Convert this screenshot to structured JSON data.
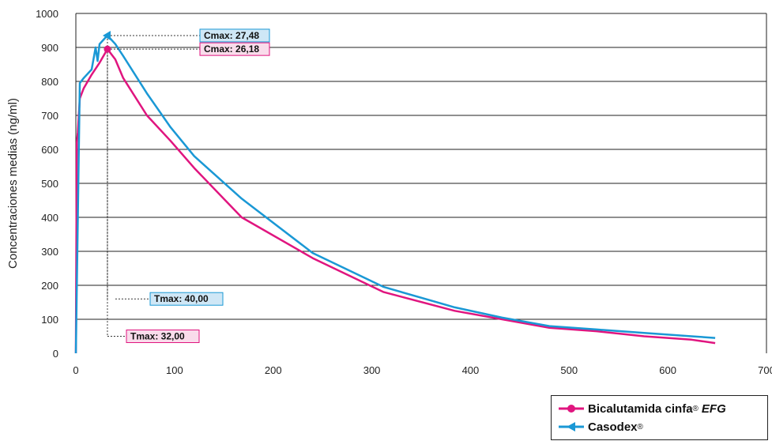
{
  "chart_data": {
    "type": "line",
    "ylabel": "Concentraciones medias (ng/ml)",
    "xlabel": "",
    "xlim": [
      0,
      700
    ],
    "ylim": [
      0,
      1000
    ],
    "x_ticks": [
      "0",
      "100",
      "200",
      "300",
      "400",
      "500",
      "600",
      "700"
    ],
    "y_ticks": [
      "0",
      "100",
      "200",
      "300",
      "400",
      "500",
      "600",
      "700",
      "800",
      "900",
      "1000"
    ],
    "grid": "horizontal",
    "series": [
      {
        "name": "Bicalutamida cinfa",
        "name_sup": "®",
        "name_suffix": "EFG",
        "color": "#e0157f",
        "marker": "circle",
        "x": [
          0,
          1,
          2,
          4,
          8,
          16,
          24,
          32,
          40,
          48,
          72,
          96,
          120,
          168,
          240,
          312,
          384,
          432,
          480,
          528,
          576,
          624,
          648
        ],
        "y": [
          0,
          620,
          650,
          750,
          780,
          820,
          855,
          895,
          865,
          810,
          700,
          625,
          545,
          400,
          280,
          180,
          125,
          100,
          75,
          65,
          50,
          40,
          30
        ]
      },
      {
        "name": "Casodex",
        "name_sup": "®",
        "name_suffix": "",
        "color": "#1a98d5",
        "marker": "triangle-left",
        "x": [
          0,
          4,
          8,
          16,
          20,
          22,
          24,
          32,
          40,
          48,
          72,
          96,
          120,
          168,
          240,
          312,
          384,
          432,
          480,
          528,
          576,
          624,
          648
        ],
        "y": [
          0,
          795,
          810,
          835,
          900,
          860,
          910,
          935,
          910,
          875,
          765,
          665,
          580,
          455,
          295,
          195,
          135,
          105,
          80,
          70,
          60,
          50,
          45
        ]
      }
    ],
    "annotations": [
      {
        "label": "Cmax: 27,48",
        "series": "Casodex",
        "kind": "cmax",
        "x": 32,
        "y": 935
      },
      {
        "label": "Cmax: 26,18",
        "series": "Bicalutamida cinfa",
        "kind": "cmax",
        "x": 32,
        "y": 895
      },
      {
        "label": "Tmax:  40,00",
        "series": "Casodex",
        "kind": "tmax",
        "x": 40,
        "y": 160
      },
      {
        "label": "Tmax:  32,00",
        "series": "Bicalutamida cinfa",
        "kind": "tmax",
        "x": 32,
        "y": 50
      }
    ],
    "legend": "bottom-right",
    "colors": {
      "pink": "#e0157f",
      "blue": "#1a98d5",
      "pink_box_fill": "#f9dceb",
      "blue_box_fill": "#cfe7f6"
    }
  }
}
